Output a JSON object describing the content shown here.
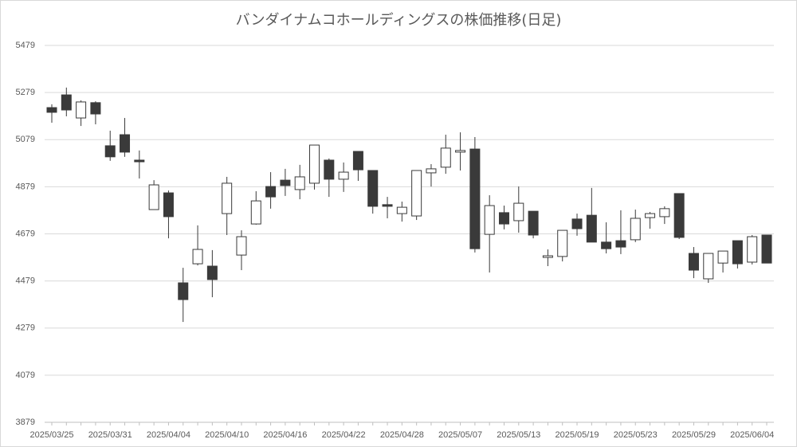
{
  "chart_data": {
    "type": "candlestick",
    "title": "バンダイナムコホールディングスの株価推移(日足)",
    "categories": [
      "2025/03/25",
      null,
      null,
      null,
      "2025/03/31",
      null,
      null,
      null,
      "2025/04/04",
      null,
      null,
      null,
      "2025/04/10",
      null,
      null,
      null,
      "2025/04/16",
      null,
      null,
      null,
      "2025/04/22",
      null,
      null,
      null,
      "2025/04/28",
      null,
      null,
      null,
      "2025/05/07",
      null,
      null,
      null,
      "2025/05/13",
      null,
      null,
      null,
      "2025/05/19",
      null,
      null,
      null,
      "2025/05/23",
      null,
      null,
      null,
      "2025/05/29",
      null,
      null,
      null,
      "2025/06/04",
      null
    ],
    "open": [
      5215,
      5269,
      5171,
      5236,
      5053,
      5100,
      4992,
      4782,
      4853,
      4471,
      4552,
      4542,
      4765,
      4589,
      4721,
      4880,
      4907,
      4867,
      4894,
      4992,
      4911,
      5029,
      4948,
      4803,
      4765,
      4755,
      4938,
      4962,
      5026,
      5039,
      4677,
      4769,
      4735,
      4775,
      4579,
      4583,
      4742,
      4758,
      4644,
      4650,
      4654,
      4748,
      4752,
      4850,
      4596,
      4488,
      4555,
      4650,
      4559,
      4674
    ],
    "high": [
      5229,
      5300,
      5246,
      5242,
      5117,
      5171,
      5033,
      4907,
      4863,
      4535,
      4715,
      4610,
      4921,
      4694,
      4860,
      4941,
      4955,
      4972,
      5056,
      4999,
      4982,
      5029,
      4948,
      4836,
      4816,
      4948,
      4975,
      5100,
      5110,
      5090,
      4843,
      4799,
      4880,
      4775,
      4613,
      4694,
      4765,
      4874,
      4728,
      4779,
      4782,
      4772,
      4796,
      4850,
      4623,
      4596,
      4606,
      4650,
      4674,
      4674
    ],
    "low": [
      5151,
      5178,
      5137,
      5144,
      4989,
      5006,
      4914,
      4782,
      4660,
      4305,
      4545,
      4410,
      4674,
      4525,
      4718,
      4786,
      4840,
      4826,
      4867,
      4836,
      4857,
      4904,
      4765,
      4745,
      4731,
      4738,
      4880,
      4934,
      4948,
      4600,
      4515,
      4698,
      4684,
      4660,
      4542,
      4562,
      4671,
      4644,
      4596,
      4593,
      4644,
      4701,
      4721,
      4657,
      4491,
      4471,
      4515,
      4532,
      4549,
      4555
    ],
    "close": [
      5195,
      5205,
      5239,
      5188,
      5006,
      5026,
      4985,
      4887,
      4752,
      4400,
      4613,
      4485,
      4894,
      4667,
      4819,
      4836,
      4884,
      4921,
      5056,
      4911,
      4941,
      4951,
      4796,
      4796,
      4792,
      4948,
      4955,
      5043,
      5033,
      4616,
      4799,
      4721,
      4809,
      4674,
      4586,
      4694,
      4701,
      4644,
      4616,
      4623,
      4745,
      4765,
      4786,
      4664,
      4525,
      4596,
      4606,
      4552,
      4667,
      4555
    ],
    "up_color": "#ffffff",
    "down_color": "#3a3a3a",
    "ylim": [
      3879,
      5479
    ],
    "yticks": [
      3879,
      4079,
      4279,
      4479,
      4679,
      4879,
      5079,
      5279,
      5479
    ],
    "grid": true
  }
}
